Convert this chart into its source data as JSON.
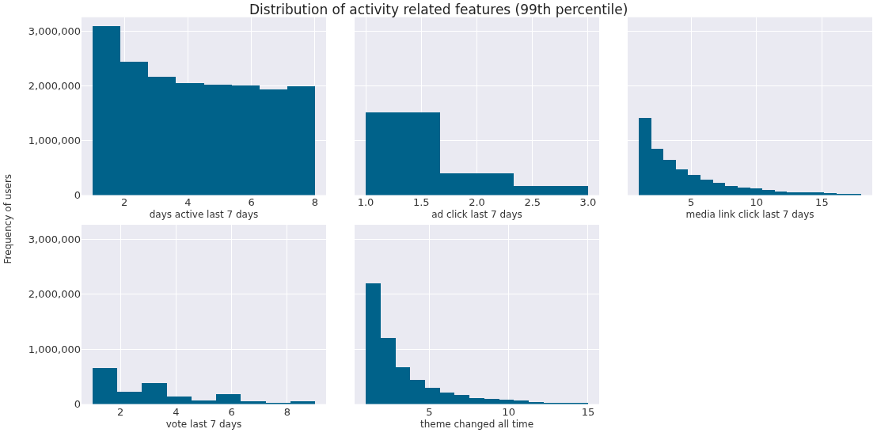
{
  "chart_data": [
    {
      "type": "histogram",
      "title": "Distribution of activity related features (99th percentile)",
      "ylabel": "Frequency of users",
      "xlabel": "days active last 7 days",
      "color": "#00628a",
      "grid": true,
      "bins": [
        1,
        1.875,
        2.75,
        3.625,
        4.5,
        5.375,
        6.25,
        7.125,
        8
      ],
      "values": [
        3110000,
        2450000,
        2180000,
        2060000,
        2030000,
        2010000,
        1950000,
        2000000
      ],
      "xlim": [
        0.65,
        8.35
      ],
      "xticks": [
        2,
        4,
        6,
        8
      ],
      "ylim": [
        0,
        3265000
      ],
      "yticks": [
        0,
        {
          "value": 1000000,
          "label": "1,000,000"
        },
        {
          "value": 2000000,
          "label": "2,000,000"
        },
        {
          "value": 3000000,
          "label": "3,000,000"
        }
      ]
    },
    {
      "type": "histogram",
      "xlabel": "ad click last 7 days",
      "color": "#00628a",
      "grid": true,
      "tick_labels": "x",
      "bins": [
        1,
        1.667,
        2.333,
        3
      ],
      "values": [
        1520000,
        410000,
        174000
      ],
      "xlim": [
        0.9,
        3.1
      ],
      "xticks": [
        {
          "value": 1,
          "label": "1.0"
        },
        {
          "value": 1.5,
          "label": "1.5"
        },
        {
          "value": 2,
          "label": "2.0"
        },
        {
          "value": 2.5,
          "label": "2.5"
        },
        {
          "value": 3,
          "label": "3.0"
        }
      ],
      "ylim": [
        0,
        3265000
      ],
      "yticks": [
        0,
        1000000,
        2000000,
        3000000
      ]
    },
    {
      "type": "histogram",
      "xlabel": "media link click last 7 days",
      "color": "#00628a",
      "grid": true,
      "tick_labels": "x",
      "bins": [
        1,
        1.944,
        2.889,
        3.833,
        4.778,
        5.722,
        6.667,
        7.611,
        8.556,
        9.5,
        10.444,
        11.389,
        12.333,
        13.278,
        14.222,
        15.167,
        16.111,
        17.056,
        18
      ],
      "values": [
        1415000,
        860000,
        645000,
        475000,
        375000,
        290000,
        227000,
        174000,
        143000,
        127000,
        95000,
        74000,
        58000,
        58000,
        48000,
        42000,
        26000,
        26000
      ],
      "xlim": [
        0.15,
        18.85
      ],
      "xticks": [
        5,
        10,
        15
      ],
      "ylim": [
        0,
        3265000
      ],
      "yticks": [
        0,
        1000000,
        2000000,
        3000000
      ]
    },
    {
      "type": "histogram",
      "xlabel": "vote last 7 days",
      "color": "#00628a",
      "grid": true,
      "bins": [
        1,
        1.889,
        2.778,
        3.667,
        4.556,
        5.444,
        6.333,
        7.222,
        8.111,
        9
      ],
      "values": [
        653000,
        228000,
        388000,
        133000,
        64000,
        181000,
        48000,
        27000,
        48000
      ],
      "xlim": [
        0.6,
        9.4
      ],
      "xticks": [
        2,
        4,
        6,
        8
      ],
      "ylim": [
        0,
        3265000
      ],
      "yticks": [
        0,
        {
          "value": 1000000,
          "label": "1,000,000"
        },
        {
          "value": 2000000,
          "label": "2,000,000"
        },
        {
          "value": 3000000,
          "label": "3,000,000"
        }
      ]
    },
    {
      "type": "histogram",
      "xlabel": "theme changed all time",
      "color": "#00628a",
      "grid": true,
      "tick_labels": "x",
      "bins": [
        1,
        1.933,
        2.867,
        3.8,
        4.733,
        5.667,
        6.6,
        7.533,
        8.467,
        9.4,
        10.333,
        11.267,
        12.2,
        13.133,
        14.067,
        15
      ],
      "values": [
        2200000,
        1200000,
        670000,
        446000,
        297000,
        212000,
        165000,
        117000,
        96000,
        80000,
        64000,
        42000,
        27000,
        27000,
        27000
      ],
      "xlim": [
        0.3,
        15.7
      ],
      "xticks": [
        5,
        10,
        15
      ],
      "ylim": [
        0,
        3265000
      ],
      "yticks": [
        0,
        1000000,
        2000000,
        3000000
      ]
    }
  ]
}
